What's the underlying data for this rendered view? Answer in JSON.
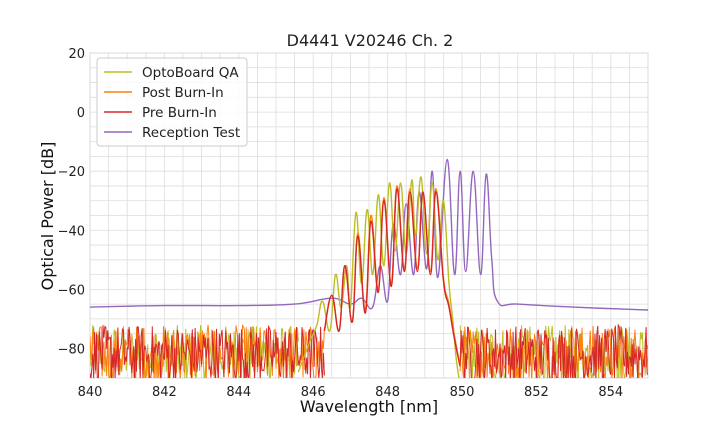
{
  "chart_data": {
    "type": "line",
    "title": "D4441 V20246 Ch. 2",
    "xlabel": "Wavelength [nm]",
    "ylabel": "Optical Power [dB]",
    "xlim": [
      840,
      855
    ],
    "ylim": [
      -90,
      20
    ],
    "xticks": [
      840,
      842,
      844,
      846,
      848,
      850,
      852,
      854
    ],
    "yticks": [
      20,
      0,
      -20,
      -40,
      -60,
      -80
    ],
    "grid": true,
    "legend_position": "upper-left",
    "series": [
      {
        "name": "OptoBoard QA",
        "color": "#bcbd22",
        "noise_floor_range": [
          -92,
          -72
        ],
        "x": [
          845.6,
          845.9,
          846.1,
          846.25,
          846.45,
          846.6,
          846.75,
          846.9,
          847.0,
          847.15,
          847.3,
          847.45,
          847.6,
          847.75,
          847.9,
          848.05,
          848.2,
          848.35,
          848.5,
          848.65,
          848.75,
          848.9,
          849.05,
          849.2,
          849.35,
          849.5,
          849.65,
          849.75,
          849.85,
          849.95
        ],
        "y": [
          -88,
          -78,
          -72,
          -64,
          -74,
          -55,
          -66,
          -52,
          -66,
          -34,
          -58,
          -33,
          -55,
          -28,
          -52,
          -24,
          -47,
          -24,
          -48,
          -23,
          -42,
          -22,
          -48,
          -24,
          -50,
          -30,
          -58,
          -70,
          -84,
          -92
        ]
      },
      {
        "name": "Post Burn-In",
        "color": "#ff7f0e",
        "noise_floor_range": [
          -92,
          -72
        ],
        "x": [
          846.3,
          846.5,
          846.7,
          846.85,
          847.05,
          847.2,
          847.4,
          847.55,
          847.75,
          847.9,
          848.1,
          848.25,
          848.45,
          848.6,
          848.8,
          848.95,
          849.15,
          849.3,
          849.5,
          849.65,
          849.8,
          849.95
        ],
        "y": [
          -74,
          -62,
          -74,
          -52,
          -71,
          -41,
          -67,
          -35,
          -60,
          -29,
          -58,
          -25,
          -53,
          -26,
          -53,
          -27,
          -54,
          -26,
          -56,
          -65,
          -76,
          -86
        ]
      },
      {
        "name": "Pre Burn-In",
        "color": "#d62728",
        "noise_floor_range": [
          -92,
          -72
        ],
        "x": [
          846.3,
          846.5,
          846.7,
          846.85,
          847.05,
          847.2,
          847.4,
          847.55,
          847.75,
          847.9,
          848.1,
          848.25,
          848.45,
          848.6,
          848.8,
          848.95,
          849.15,
          849.3,
          849.5,
          849.65,
          849.8,
          849.95
        ],
        "y": [
          -74,
          -62,
          -74,
          -52,
          -71,
          -42,
          -68,
          -37,
          -61,
          -30,
          -59,
          -26,
          -54,
          -27,
          -54,
          -27,
          -55,
          -27,
          -57,
          -66,
          -77,
          -86
        ]
      },
      {
        "name": "Reception Test",
        "color": "#9467bd",
        "x": [
          840.0,
          842.0,
          844.0,
          845.5,
          846.5,
          847.0,
          847.3,
          847.6,
          847.8,
          848.0,
          848.15,
          848.35,
          848.5,
          848.7,
          848.85,
          849.05,
          849.2,
          849.35,
          849.6,
          849.8,
          849.95,
          850.1,
          850.3,
          850.5,
          850.65,
          850.8,
          850.95,
          851.5,
          853.0,
          855.0
        ],
        "y": [
          -66,
          -65.5,
          -65.5,
          -65,
          -63,
          -65,
          -63,
          -66,
          -52,
          -64,
          -38,
          -55,
          -31,
          -55,
          -27,
          -53,
          -20,
          -56,
          -16,
          -55,
          -20,
          -54,
          -20,
          -55,
          -21,
          -50,
          -64,
          -65,
          -66,
          -67
        ]
      }
    ]
  }
}
